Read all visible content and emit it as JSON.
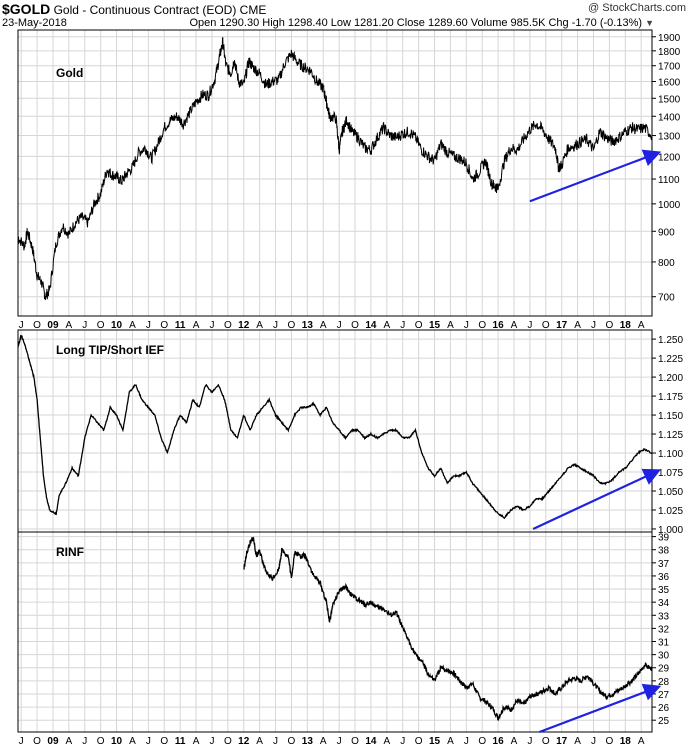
{
  "header": {
    "symbol": "$GOLD",
    "description": "Gold - Continuous Contract (EOD)",
    "exchange": "CME",
    "watermark": "@ StockCharts.com",
    "date": "23-May-2018",
    "stats_text": "Open 1290.30  High 1298.40  Low 1281.20  Close 1289.60  Volume 985.5K  Chg -1.70 (-0.13%)",
    "chg_arrow": "▼"
  },
  "colors": {
    "price": "#000000",
    "trend_arrow": "#1f22e0",
    "grid": "#d6d6d6",
    "frame": "#000000"
  },
  "chart_data": [
    {
      "type": "line",
      "panel": "top",
      "label": "Gold",
      "y_scale": "log",
      "ylim": [
        650,
        1950
      ],
      "y_ticks": [
        700,
        800,
        900,
        1000,
        1100,
        1200,
        1300,
        1400,
        1500,
        1600,
        1700,
        1800,
        1900
      ],
      "x_range": [
        2008.45,
        2018.42
      ],
      "series": [
        {
          "x": [
            2008.45,
            2008.55,
            2008.6,
            2008.68,
            2008.75,
            2008.82,
            2008.88,
            2008.95,
            2009.05,
            2009.15,
            2009.25,
            2009.35,
            2009.45,
            2009.55,
            2009.65,
            2009.75,
            2009.85,
            2009.92,
            2010.0,
            2010.08,
            2010.15,
            2010.25,
            2010.35,
            2010.45,
            2010.55,
            2010.65,
            2010.75,
            2010.85,
            2010.95,
            2011.05,
            2011.15,
            2011.25,
            2011.35,
            2011.45,
            2011.55,
            2011.62,
            2011.67,
            2011.72,
            2011.8,
            2011.85,
            2011.92,
            2012.0,
            2012.08,
            2012.15,
            2012.25,
            2012.35,
            2012.45,
            2012.55,
            2012.65,
            2012.75,
            2012.85,
            2012.95,
            2013.05,
            2013.15,
            2013.25,
            2013.3,
            2013.35,
            2013.45,
            2013.5,
            2013.55,
            2013.62,
            2013.7,
            2013.8,
            2013.9,
            2014.0,
            2014.1,
            2014.2,
            2014.3,
            2014.4,
            2014.5,
            2014.6,
            2014.7,
            2014.8,
            2014.9,
            2015.0,
            2015.1,
            2015.2,
            2015.3,
            2015.4,
            2015.5,
            2015.6,
            2015.7,
            2015.8,
            2015.9,
            2015.95,
            2016.0,
            2016.1,
            2016.2,
            2016.3,
            2016.4,
            2016.5,
            2016.6,
            2016.7,
            2016.8,
            2016.9,
            2016.95,
            2017.0,
            2017.1,
            2017.2,
            2017.3,
            2017.4,
            2017.5,
            2017.6,
            2017.7,
            2017.8,
            2017.9,
            2018.0,
            2018.1,
            2018.2,
            2018.3,
            2018.42
          ],
          "y": [
            880,
            850,
            900,
            840,
            760,
            740,
            700,
            720,
            860,
            920,
            890,
            930,
            950,
            930,
            1000,
            1040,
            1140,
            1120,
            1110,
            1090,
            1120,
            1150,
            1220,
            1240,
            1190,
            1260,
            1340,
            1380,
            1400,
            1360,
            1420,
            1480,
            1520,
            1520,
            1620,
            1760,
            1860,
            1700,
            1650,
            1740,
            1600,
            1580,
            1730,
            1690,
            1650,
            1580,
            1600,
            1610,
            1720,
            1780,
            1720,
            1690,
            1670,
            1600,
            1560,
            1480,
            1400,
            1390,
            1230,
            1320,
            1380,
            1320,
            1290,
            1240,
            1230,
            1290,
            1340,
            1300,
            1290,
            1310,
            1320,
            1290,
            1230,
            1200,
            1180,
            1260,
            1220,
            1200,
            1190,
            1170,
            1100,
            1130,
            1180,
            1080,
            1070,
            1060,
            1180,
            1240,
            1230,
            1280,
            1330,
            1360,
            1330,
            1280,
            1240,
            1150,
            1160,
            1240,
            1250,
            1270,
            1280,
            1230,
            1320,
            1290,
            1270,
            1290,
            1320,
            1340,
            1330,
            1340,
            1300
          ]
        }
      ],
      "trend_arrow": {
        "from": [
          2016.5,
          1010
        ],
        "to": [
          2018.5,
          1215
        ]
      }
    },
    {
      "type": "line",
      "panel": "middle",
      "label": "Long TIP/Short IEF",
      "y_scale": "linear",
      "ylim": [
        0.996,
        1.262
      ],
      "y_ticks": [
        "1.000",
        "1.025",
        "1.050",
        "1.075",
        "1.100",
        "1.125",
        "1.150",
        "1.175",
        "1.200",
        "1.225",
        "1.250"
      ],
      "x_range": [
        2008.45,
        2018.42
      ],
      "series": [
        {
          "x": [
            2008.45,
            2008.5,
            2008.55,
            2008.6,
            2008.65,
            2008.7,
            2008.75,
            2008.8,
            2008.85,
            2008.9,
            2008.95,
            2009.05,
            2009.1,
            2009.2,
            2009.3,
            2009.4,
            2009.5,
            2009.6,
            2009.7,
            2009.8,
            2009.9,
            2010.0,
            2010.1,
            2010.2,
            2010.3,
            2010.4,
            2010.5,
            2010.6,
            2010.7,
            2010.8,
            2010.9,
            2011.0,
            2011.1,
            2011.2,
            2011.3,
            2011.4,
            2011.5,
            2011.6,
            2011.7,
            2011.8,
            2011.9,
            2012.0,
            2012.1,
            2012.2,
            2012.3,
            2012.4,
            2012.5,
            2012.6,
            2012.7,
            2012.8,
            2012.9,
            2013.0,
            2013.1,
            2013.2,
            2013.3,
            2013.4,
            2013.5,
            2013.6,
            2013.7,
            2013.8,
            2013.9,
            2014.0,
            2014.1,
            2014.2,
            2014.3,
            2014.4,
            2014.5,
            2014.6,
            2014.7,
            2014.8,
            2014.9,
            2015.0,
            2015.1,
            2015.2,
            2015.3,
            2015.4,
            2015.5,
            2015.6,
            2015.7,
            2015.8,
            2015.9,
            2016.0,
            2016.1,
            2016.2,
            2016.3,
            2016.4,
            2016.5,
            2016.6,
            2016.7,
            2016.8,
            2016.9,
            2017.0,
            2017.1,
            2017.2,
            2017.3,
            2017.4,
            2017.5,
            2017.6,
            2017.7,
            2017.8,
            2017.9,
            2018.0,
            2018.1,
            2018.2,
            2018.3,
            2018.42
          ],
          "y": [
            1.24,
            1.255,
            1.245,
            1.23,
            1.215,
            1.2,
            1.17,
            1.12,
            1.07,
            1.04,
            1.025,
            1.02,
            1.045,
            1.06,
            1.08,
            1.07,
            1.12,
            1.15,
            1.14,
            1.13,
            1.16,
            1.15,
            1.13,
            1.18,
            1.19,
            1.17,
            1.16,
            1.15,
            1.12,
            1.1,
            1.13,
            1.15,
            1.14,
            1.17,
            1.16,
            1.19,
            1.18,
            1.19,
            1.17,
            1.13,
            1.12,
            1.15,
            1.13,
            1.15,
            1.16,
            1.17,
            1.15,
            1.14,
            1.13,
            1.15,
            1.16,
            1.16,
            1.165,
            1.15,
            1.16,
            1.14,
            1.13,
            1.12,
            1.13,
            1.13,
            1.12,
            1.125,
            1.12,
            1.125,
            1.13,
            1.13,
            1.12,
            1.12,
            1.13,
            1.1,
            1.08,
            1.07,
            1.08,
            1.06,
            1.07,
            1.07,
            1.075,
            1.06,
            1.05,
            1.04,
            1.03,
            1.02,
            1.015,
            1.025,
            1.03,
            1.025,
            1.03,
            1.04,
            1.04,
            1.05,
            1.06,
            1.07,
            1.08,
            1.085,
            1.08,
            1.075,
            1.07,
            1.06,
            1.06,
            1.065,
            1.075,
            1.08,
            1.09,
            1.1,
            1.105,
            1.1
          ]
        }
      ],
      "trend_arrow": {
        "from": [
          2016.55,
          1.0
        ],
        "to": [
          2018.5,
          1.076
        ]
      }
    },
    {
      "type": "line",
      "panel": "bottom",
      "label": "RINF",
      "y_scale": "linear",
      "ylim": [
        24.1,
        39.35
      ],
      "y_ticks": [
        25,
        26,
        27,
        28,
        29,
        30,
        31,
        32,
        33,
        34,
        35,
        36,
        37,
        38,
        39
      ],
      "x_range": [
        2008.45,
        2018.42
      ],
      "series": [
        {
          "x": [
            2012.0,
            2012.05,
            2012.1,
            2012.15,
            2012.2,
            2012.25,
            2012.3,
            2012.35,
            2012.45,
            2012.55,
            2012.6,
            2012.7,
            2012.75,
            2012.8,
            2012.9,
            2012.95,
            2013.0,
            2013.1,
            2013.2,
            2013.3,
            2013.35,
            2013.4,
            2013.5,
            2013.6,
            2013.7,
            2013.8,
            2013.9,
            2014.0,
            2014.1,
            2014.2,
            2014.3,
            2014.4,
            2014.5,
            2014.6,
            2014.7,
            2014.8,
            2014.9,
            2015.0,
            2015.1,
            2015.2,
            2015.3,
            2015.4,
            2015.5,
            2015.6,
            2015.7,
            2015.8,
            2015.9,
            2016.0,
            2016.1,
            2016.2,
            2016.3,
            2016.4,
            2016.5,
            2016.6,
            2016.7,
            2016.8,
            2016.9,
            2017.0,
            2017.1,
            2017.2,
            2017.3,
            2017.4,
            2017.5,
            2017.6,
            2017.7,
            2017.8,
            2017.9,
            2018.0,
            2018.1,
            2018.2,
            2018.3,
            2018.42
          ],
          "y": [
            36.5,
            37.8,
            38.5,
            38.9,
            37.5,
            38.0,
            37.0,
            36.3,
            35.8,
            36.5,
            38.0,
            37.5,
            35.8,
            37.8,
            37.5,
            37.6,
            37.2,
            36.0,
            35.5,
            34.0,
            32.5,
            33.8,
            34.8,
            35.2,
            34.5,
            34.2,
            33.8,
            34.0,
            33.6,
            33.5,
            33.0,
            33.2,
            32.0,
            31.0,
            30.0,
            29.5,
            28.5,
            28.0,
            29.0,
            28.8,
            28.6,
            28.0,
            27.5,
            27.8,
            26.8,
            26.4,
            26.0,
            25.2,
            26.0,
            25.8,
            26.5,
            26.2,
            26.8,
            27.0,
            27.2,
            27.5,
            27.0,
            27.5,
            28.0,
            28.2,
            28.0,
            28.4,
            27.8,
            27.2,
            26.8,
            27.0,
            27.3,
            27.6,
            28.0,
            28.5,
            29.2,
            28.9
          ]
        }
      ],
      "trend_arrow": {
        "from": [
          2016.65,
          24.1
        ],
        "to": [
          2018.5,
          27.5
        ]
      }
    }
  ],
  "x_axis": {
    "ticks": [
      {
        "x": 2008.5,
        "label": "J"
      },
      {
        "x": 2008.75,
        "label": "O"
      },
      {
        "x": 2009.0,
        "label": "09",
        "bold": true
      },
      {
        "x": 2009.25,
        "label": "A"
      },
      {
        "x": 2009.5,
        "label": "J"
      },
      {
        "x": 2009.75,
        "label": "O"
      },
      {
        "x": 2010.0,
        "label": "10",
        "bold": true
      },
      {
        "x": 2010.25,
        "label": "A"
      },
      {
        "x": 2010.5,
        "label": "J"
      },
      {
        "x": 2010.75,
        "label": "O"
      },
      {
        "x": 2011.0,
        "label": "11",
        "bold": true
      },
      {
        "x": 2011.25,
        "label": "A"
      },
      {
        "x": 2011.5,
        "label": "J"
      },
      {
        "x": 2011.75,
        "label": "O"
      },
      {
        "x": 2012.0,
        "label": "12",
        "bold": true
      },
      {
        "x": 2012.25,
        "label": "A"
      },
      {
        "x": 2012.5,
        "label": "J"
      },
      {
        "x": 2012.75,
        "label": "O"
      },
      {
        "x": 2013.0,
        "label": "13",
        "bold": true
      },
      {
        "x": 2013.25,
        "label": "A"
      },
      {
        "x": 2013.5,
        "label": "J"
      },
      {
        "x": 2013.75,
        "label": "O"
      },
      {
        "x": 2014.0,
        "label": "14",
        "bold": true
      },
      {
        "x": 2014.25,
        "label": "A"
      },
      {
        "x": 2014.5,
        "label": "J"
      },
      {
        "x": 2014.75,
        "label": "O"
      },
      {
        "x": 2015.0,
        "label": "15",
        "bold": true
      },
      {
        "x": 2015.25,
        "label": "A"
      },
      {
        "x": 2015.5,
        "label": "J"
      },
      {
        "x": 2015.75,
        "label": "O"
      },
      {
        "x": 2016.0,
        "label": "16",
        "bold": true
      },
      {
        "x": 2016.25,
        "label": "A"
      },
      {
        "x": 2016.5,
        "label": "J"
      },
      {
        "x": 2016.75,
        "label": "O"
      },
      {
        "x": 2017.0,
        "label": "17",
        "bold": true
      },
      {
        "x": 2017.25,
        "label": "A"
      },
      {
        "x": 2017.5,
        "label": "J"
      },
      {
        "x": 2017.75,
        "label": "O"
      },
      {
        "x": 2018.0,
        "label": "18",
        "bold": true
      },
      {
        "x": 2018.25,
        "label": "A"
      }
    ]
  }
}
